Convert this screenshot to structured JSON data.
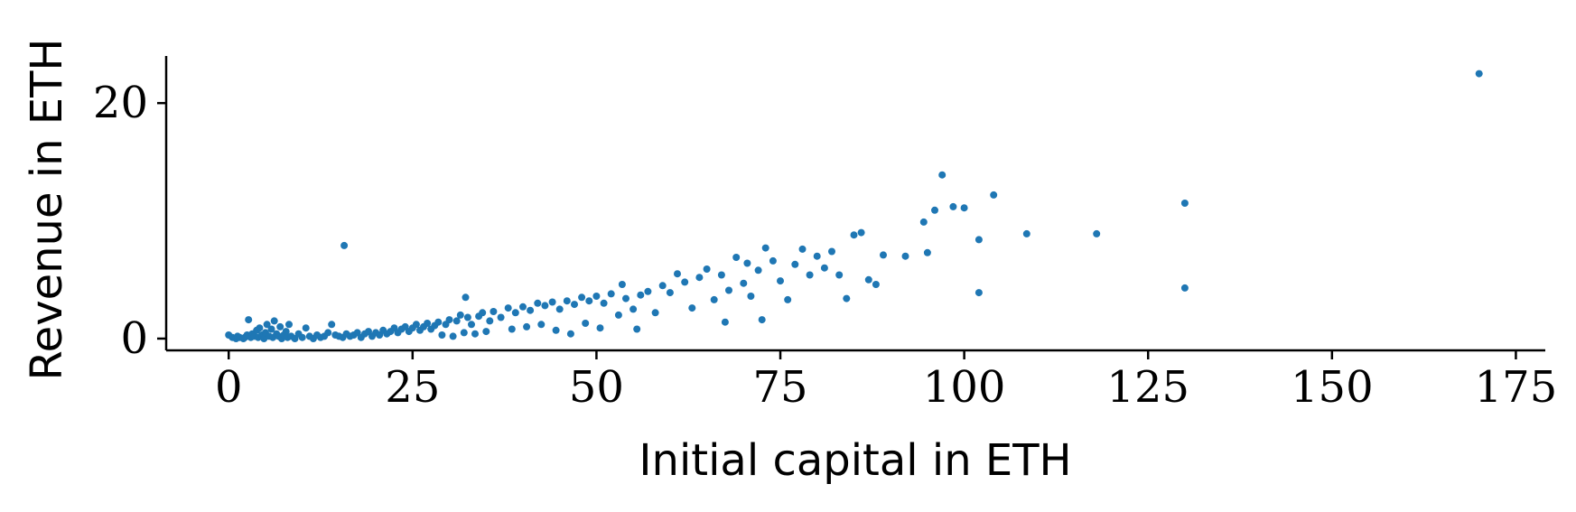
{
  "chart_data": {
    "type": "scatter",
    "xlabel": "Initial capital in ETH",
    "ylabel": "Revenue in ETH",
    "xlim": [
      -8.5,
      179
    ],
    "ylim": [
      -1.0,
      24.0
    ],
    "xticks": [
      0,
      25,
      50,
      75,
      100,
      125,
      150,
      175
    ],
    "yticks": [
      0,
      20
    ],
    "grid": false,
    "marker_color": "#1f77b4",
    "series": [
      {
        "points": [
          [
            0.0,
            0.3
          ],
          [
            0.5,
            0.1
          ],
          [
            1.0,
            0.0
          ],
          [
            1.2,
            0.2
          ],
          [
            1.5,
            0.1
          ],
          [
            2.0,
            0.0
          ],
          [
            2.2,
            0.1
          ],
          [
            2.5,
            0.3
          ],
          [
            2.7,
            1.6
          ],
          [
            3.0,
            0.1
          ],
          [
            3.2,
            0.4
          ],
          [
            3.5,
            0.2
          ],
          [
            3.8,
            0.7
          ],
          [
            4.0,
            0.1
          ],
          [
            4.2,
            0.9
          ],
          [
            4.5,
            0.3
          ],
          [
            4.8,
            0.0
          ],
          [
            5.0,
            0.5
          ],
          [
            5.2,
            1.2
          ],
          [
            5.5,
            0.2
          ],
          [
            5.8,
            0.8
          ],
          [
            6.0,
            0.1
          ],
          [
            6.2,
            1.5
          ],
          [
            6.5,
            0.4
          ],
          [
            6.8,
            0.2
          ],
          [
            7.0,
            1.0
          ],
          [
            7.2,
            0.0
          ],
          [
            7.5,
            0.3
          ],
          [
            7.8,
            0.6
          ],
          [
            8.0,
            0.1
          ],
          [
            8.2,
            1.2
          ],
          [
            8.5,
            0.2
          ],
          [
            9.0,
            0.0
          ],
          [
            9.5,
            0.4
          ],
          [
            10.0,
            0.1
          ],
          [
            10.5,
            0.9
          ],
          [
            11.0,
            0.2
          ],
          [
            11.5,
            0.0
          ],
          [
            12.0,
            0.3
          ],
          [
            12.5,
            0.1
          ],
          [
            13.0,
            0.2
          ],
          [
            13.5,
            0.5
          ],
          [
            14.0,
            1.2
          ],
          [
            14.5,
            0.3
          ],
          [
            15.0,
            0.2
          ],
          [
            15.5,
            0.1
          ],
          [
            15.7,
            7.9
          ],
          [
            16.0,
            0.4
          ],
          [
            16.5,
            0.2
          ],
          [
            17.0,
            0.3
          ],
          [
            17.5,
            0.5
          ],
          [
            18.0,
            0.1
          ],
          [
            18.5,
            0.4
          ],
          [
            19.0,
            0.6
          ],
          [
            19.5,
            0.2
          ],
          [
            20.0,
            0.5
          ],
          [
            20.5,
            0.3
          ],
          [
            21.0,
            0.7
          ],
          [
            21.5,
            0.4
          ],
          [
            22.0,
            0.6
          ],
          [
            22.5,
            0.9
          ],
          [
            23.0,
            0.5
          ],
          [
            23.5,
            0.8
          ],
          [
            24.0,
            1.0
          ],
          [
            24.5,
            0.6
          ],
          [
            25.0,
            0.9
          ],
          [
            25.5,
            1.2
          ],
          [
            26.0,
            0.7
          ],
          [
            26.5,
            1.0
          ],
          [
            27.0,
            1.3
          ],
          [
            27.5,
            0.8
          ],
          [
            28.0,
            1.1
          ],
          [
            28.5,
            1.4
          ],
          [
            29.0,
            0.3
          ],
          [
            29.5,
            1.2
          ],
          [
            30.0,
            1.6
          ],
          [
            30.5,
            0.2
          ],
          [
            31.0,
            1.5
          ],
          [
            31.5,
            2.0
          ],
          [
            32.0,
            0.5
          ],
          [
            32.2,
            3.5
          ],
          [
            32.5,
            1.8
          ],
          [
            33.0,
            1.2
          ],
          [
            33.5,
            0.4
          ],
          [
            34.0,
            1.9
          ],
          [
            34.5,
            2.2
          ],
          [
            35.0,
            0.6
          ],
          [
            35.5,
            1.5
          ],
          [
            36.0,
            2.3
          ],
          [
            37.0,
            1.8
          ],
          [
            38.0,
            2.6
          ],
          [
            38.5,
            0.8
          ],
          [
            39.0,
            2.2
          ],
          [
            40.0,
            2.7
          ],
          [
            40.5,
            1.0
          ],
          [
            41.0,
            2.4
          ],
          [
            42.0,
            3.0
          ],
          [
            42.5,
            1.2
          ],
          [
            43.0,
            2.8
          ],
          [
            44.0,
            3.1
          ],
          [
            44.5,
            0.7
          ],
          [
            45.0,
            2.5
          ],
          [
            46.0,
            3.2
          ],
          [
            46.5,
            0.4
          ],
          [
            47.0,
            2.9
          ],
          [
            48.0,
            3.5
          ],
          [
            48.5,
            1.3
          ],
          [
            49.0,
            3.2
          ],
          [
            50.0,
            3.6
          ],
          [
            50.5,
            0.9
          ],
          [
            51.0,
            3.0
          ],
          [
            52.0,
            3.8
          ],
          [
            53.0,
            2.0
          ],
          [
            53.5,
            4.6
          ],
          [
            54.0,
            3.4
          ],
          [
            55.0,
            2.5
          ],
          [
            55.5,
            0.8
          ],
          [
            56.0,
            3.7
          ],
          [
            57.0,
            4.0
          ],
          [
            58.0,
            2.2
          ],
          [
            59.0,
            4.5
          ],
          [
            60.0,
            3.9
          ],
          [
            61.0,
            5.5
          ],
          [
            62.0,
            4.8
          ],
          [
            63.0,
            2.6
          ],
          [
            64.0,
            5.2
          ],
          [
            65.0,
            5.9
          ],
          [
            66.0,
            3.3
          ],
          [
            67.0,
            5.4
          ],
          [
            67.5,
            1.4
          ],
          [
            68.0,
            4.1
          ],
          [
            69.0,
            6.9
          ],
          [
            70.0,
            4.7
          ],
          [
            70.5,
            6.4
          ],
          [
            71.0,
            3.6
          ],
          [
            72.0,
            5.8
          ],
          [
            72.5,
            1.6
          ],
          [
            73.0,
            7.7
          ],
          [
            74.0,
            6.6
          ],
          [
            75.0,
            4.9
          ],
          [
            76.0,
            3.3
          ],
          [
            77.0,
            6.3
          ],
          [
            78.0,
            7.6
          ],
          [
            79.0,
            5.4
          ],
          [
            80.0,
            7.0
          ],
          [
            81.0,
            6.0
          ],
          [
            82.0,
            7.4
          ],
          [
            83.0,
            5.4
          ],
          [
            84.0,
            3.4
          ],
          [
            85.0,
            8.8
          ],
          [
            86.0,
            9.0
          ],
          [
            87.0,
            5.0
          ],
          [
            88.0,
            4.6
          ],
          [
            89.0,
            7.1
          ],
          [
            92.0,
            7.0
          ],
          [
            94.5,
            9.9
          ],
          [
            95.0,
            7.3
          ],
          [
            96.0,
            10.9
          ],
          [
            97.0,
            13.9
          ],
          [
            98.5,
            11.2
          ],
          [
            100.0,
            11.1
          ],
          [
            102.0,
            8.4
          ],
          [
            102.0,
            3.9
          ],
          [
            104.0,
            12.2
          ],
          [
            108.5,
            8.9
          ],
          [
            118.0,
            8.9
          ],
          [
            130.0,
            11.5
          ],
          [
            130.0,
            4.3
          ],
          [
            170.0,
            22.5
          ]
        ]
      }
    ]
  }
}
